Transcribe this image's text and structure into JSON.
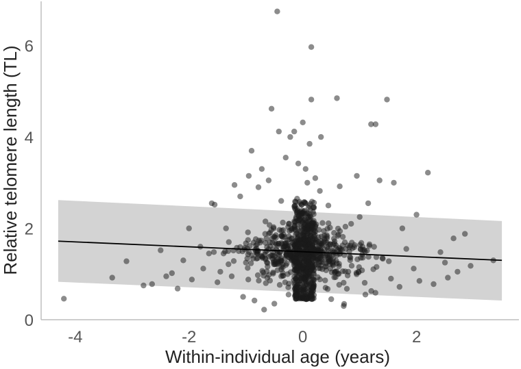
{
  "chart_data": {
    "type": "scatter",
    "title": "",
    "xlabel": "Within-individual age (years)",
    "ylabel": "Relative telomere length (TL)",
    "xlim": [
      -4.6,
      3.8
    ],
    "ylim": [
      0,
      7
    ],
    "xticks": [
      -4,
      -2,
      0,
      2
    ],
    "yticks": [
      0,
      2,
      4,
      6
    ],
    "xtick_labels": [
      "-4",
      "-2",
      "0",
      "2"
    ],
    "ytick_labels": [
      "0",
      "2",
      "4",
      "6"
    ],
    "grid": false,
    "legend": "none",
    "colors": {
      "points": "#1a1a1a",
      "ribbon": "#d3d3d3",
      "line": "#000000",
      "axis": "#bdbdbd"
    },
    "regression": {
      "x": [
        -4.3,
        3.5
      ],
      "y": [
        1.72,
        1.3
      ]
    },
    "prediction_band": {
      "x": [
        -4.3,
        3.5
      ],
      "lower": [
        0.83,
        0.42
      ],
      "upper": [
        2.62,
        2.16
      ]
    },
    "points": [
      {
        "x": -4.2,
        "y": 0.46
      },
      {
        "x": -3.35,
        "y": 0.92
      },
      {
        "x": -3.1,
        "y": 1.28
      },
      {
        "x": -2.8,
        "y": 0.75
      },
      {
        "x": -2.65,
        "y": 0.78
      },
      {
        "x": -2.5,
        "y": 1.52
      },
      {
        "x": -2.4,
        "y": 0.95
      },
      {
        "x": -2.3,
        "y": 1.02
      },
      {
        "x": -2.2,
        "y": 0.68
      },
      {
        "x": -2.1,
        "y": 1.3
      },
      {
        "x": -1.95,
        "y": 0.88
      },
      {
        "x": -1.8,
        "y": 1.6
      },
      {
        "x": -1.75,
        "y": 1.12
      },
      {
        "x": -1.6,
        "y": 2.55
      },
      {
        "x": -1.55,
        "y": 2.52
      },
      {
        "x": -1.45,
        "y": 1.05
      },
      {
        "x": -1.35,
        "y": 2.0
      },
      {
        "x": -1.2,
        "y": 2.95
      },
      {
        "x": -1.1,
        "y": 2.7
      },
      {
        "x": -1.05,
        "y": 0.5
      },
      {
        "x": -0.95,
        "y": 3.15
      },
      {
        "x": -0.9,
        "y": 3.7
      },
      {
        "x": -0.85,
        "y": 0.42
      },
      {
        "x": -0.78,
        "y": 2.9
      },
      {
        "x": -0.72,
        "y": 3.3
      },
      {
        "x": -0.68,
        "y": 0.22
      },
      {
        "x": -0.6,
        "y": 3.05
      },
      {
        "x": -0.55,
        "y": 4.62
      },
      {
        "x": -0.5,
        "y": 1.82
      },
      {
        "x": -0.45,
        "y": 6.75
      },
      {
        "x": -0.42,
        "y": 4.12
      },
      {
        "x": -0.38,
        "y": 2.6
      },
      {
        "x": -0.3,
        "y": 3.55
      },
      {
        "x": -0.22,
        "y": 4.0
      },
      {
        "x": -0.15,
        "y": 4.12
      },
      {
        "x": -0.08,
        "y": 3.42
      },
      {
        "x": 0.0,
        "y": 4.32
      },
      {
        "x": 0.05,
        "y": 3.3
      },
      {
        "x": 0.12,
        "y": 3.85
      },
      {
        "x": 0.15,
        "y": 5.97
      },
      {
        "x": 0.15,
        "y": 4.82
      },
      {
        "x": 0.22,
        "y": 3.1
      },
      {
        "x": 0.3,
        "y": 2.82
      },
      {
        "x": 0.32,
        "y": 4.0
      },
      {
        "x": 0.45,
        "y": 2.5
      },
      {
        "x": 0.6,
        "y": 4.85
      },
      {
        "x": 0.65,
        "y": 2.92
      },
      {
        "x": 0.72,
        "y": 0.3
      },
      {
        "x": 0.85,
        "y": 2.1
      },
      {
        "x": 0.95,
        "y": 3.15
      },
      {
        "x": 1.05,
        "y": 1.6
      },
      {
        "x": 1.15,
        "y": 2.55
      },
      {
        "x": 1.2,
        "y": 4.28
      },
      {
        "x": 1.28,
        "y": 4.28
      },
      {
        "x": 1.35,
        "y": 3.05
      },
      {
        "x": 1.48,
        "y": 4.82
      },
      {
        "x": 1.55,
        "y": 0.9
      },
      {
        "x": 1.6,
        "y": 3.0
      },
      {
        "x": 1.7,
        "y": 0.72
      },
      {
        "x": 1.82,
        "y": 1.55
      },
      {
        "x": 1.95,
        "y": 1.12
      },
      {
        "x": 2.05,
        "y": 0.85
      },
      {
        "x": 2.2,
        "y": 3.22
      },
      {
        "x": 2.3,
        "y": 0.78
      },
      {
        "x": 2.42,
        "y": 1.48
      },
      {
        "x": 2.55,
        "y": 0.92
      },
      {
        "x": 2.65,
        "y": 1.78
      },
      {
        "x": 2.72,
        "y": 1.05
      },
      {
        "x": 2.85,
        "y": 1.88
      },
      {
        "x": 2.95,
        "y": 1.18
      },
      {
        "x": 3.35,
        "y": 1.3
      },
      {
        "x": -1.65,
        "y": 1.45
      },
      {
        "x": -1.5,
        "y": 0.82
      },
      {
        "x": -1.3,
        "y": 1.7
      },
      {
        "x": -1.25,
        "y": 0.95
      },
      {
        "x": -1.0,
        "y": 1.25
      },
      {
        "x": -0.8,
        "y": 1.5
      },
      {
        "x": -0.65,
        "y": 0.8
      },
      {
        "x": -0.35,
        "y": 1.15
      },
      {
        "x": -0.25,
        "y": 0.55
      },
      {
        "x": 0.4,
        "y": 0.7
      },
      {
        "x": 0.55,
        "y": 1.9
      },
      {
        "x": 0.8,
        "y": 1.05
      },
      {
        "x": 1.0,
        "y": 2.25
      },
      {
        "x": 1.4,
        "y": 1.35
      },
      {
        "x": 1.75,
        "y": 2.0
      },
      {
        "x": 2.0,
        "y": 2.3
      },
      {
        "x": 2.5,
        "y": 1.25
      },
      {
        "x": -2.0,
        "y": 2.0
      },
      {
        "x": -0.1,
        "y": 2.65
      },
      {
        "x": 0.1,
        "y": 2.45
      },
      {
        "x": 0.08,
        "y": 3.0
      },
      {
        "x": -0.05,
        "y": 2.2
      },
      {
        "x": 1.1,
        "y": 0.55
      },
      {
        "x": 0.5,
        "y": 0.45
      },
      {
        "x": -0.5,
        "y": 0.35
      }
    ],
    "dense_cluster": {
      "x_range": [
        -0.15,
        0.2
      ],
      "y_range": [
        0.45,
        2.6
      ],
      "count": 420
    }
  }
}
